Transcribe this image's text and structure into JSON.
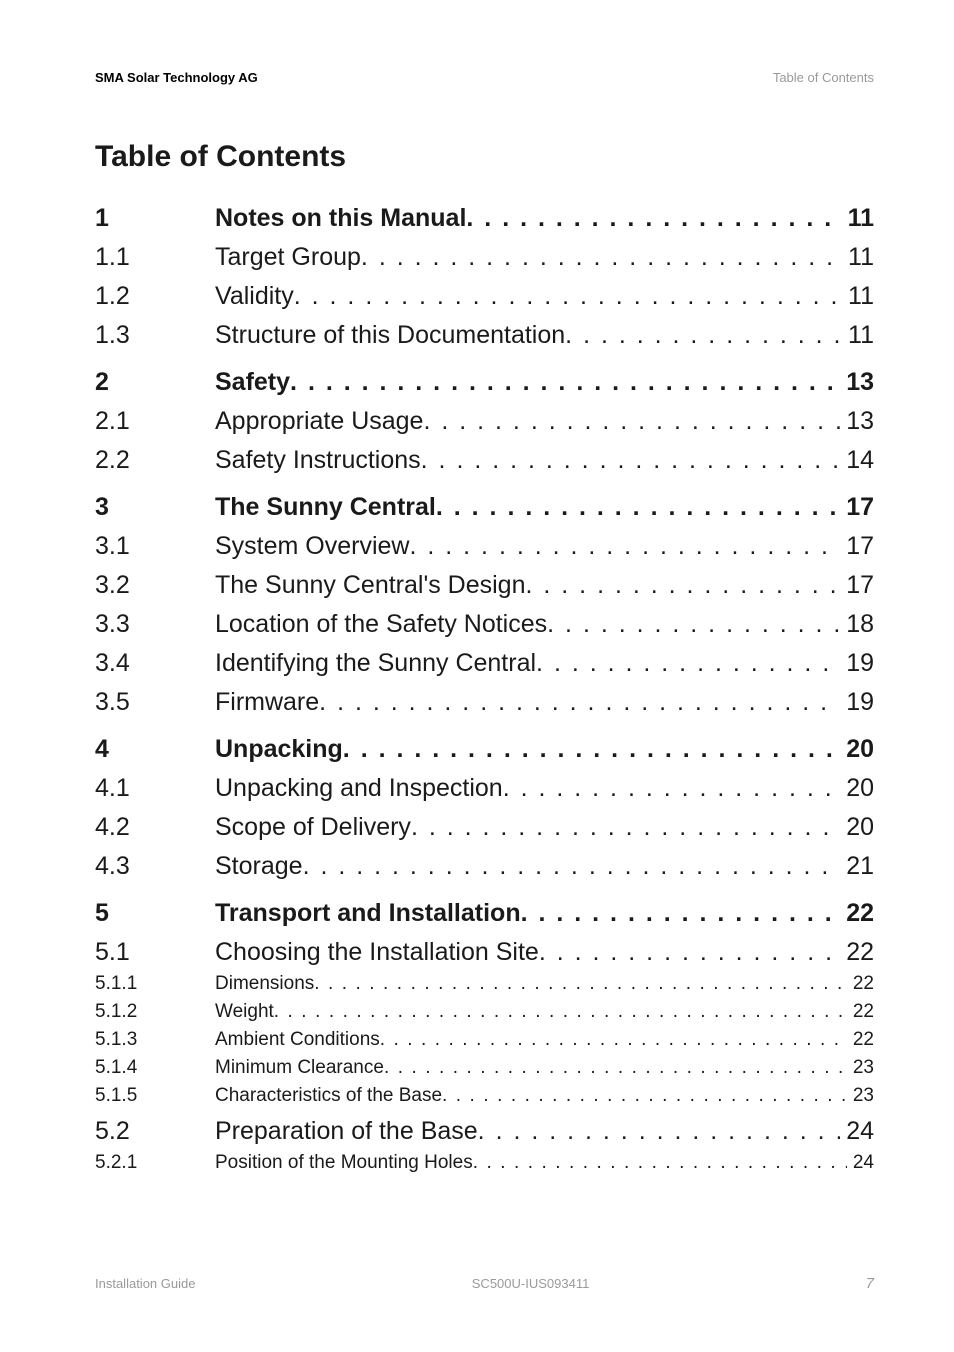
{
  "header": {
    "left": "SMA Solar Technology AG",
    "right": "Table of Contents"
  },
  "title": "Table of Contents",
  "toc": [
    {
      "level": 1,
      "num": "1",
      "label": "Notes on this Manual",
      "page": "11"
    },
    {
      "level": 2,
      "num": "1.1",
      "label": "Target Group",
      "page": "11"
    },
    {
      "level": 2,
      "num": "1.2",
      "label": "Validity",
      "page": "11"
    },
    {
      "level": 2,
      "num": "1.3",
      "label": "Structure of this Documentation",
      "page": "11"
    },
    {
      "level": 1,
      "num": "2",
      "label": "Safety",
      "page": "13"
    },
    {
      "level": 2,
      "num": "2.1",
      "label": "Appropriate Usage",
      "page": "13"
    },
    {
      "level": 2,
      "num": "2.2",
      "label": "Safety Instructions",
      "page": "14"
    },
    {
      "level": 1,
      "num": "3",
      "label": "The Sunny Central",
      "page": "17"
    },
    {
      "level": 2,
      "num": "3.1",
      "label": "System Overview",
      "page": "17"
    },
    {
      "level": 2,
      "num": "3.2",
      "label": "The Sunny Central's Design",
      "page": "17"
    },
    {
      "level": 2,
      "num": "3.3",
      "label": "Location of the Safety Notices",
      "page": "18"
    },
    {
      "level": 2,
      "num": "3.4",
      "label": "Identifying the Sunny Central",
      "page": "19"
    },
    {
      "level": 2,
      "num": "3.5",
      "label": "Firmware",
      "page": "19"
    },
    {
      "level": 1,
      "num": "4",
      "label": "Unpacking",
      "page": "20"
    },
    {
      "level": 2,
      "num": "4.1",
      "label": "Unpacking and Inspection",
      "page": "20"
    },
    {
      "level": 2,
      "num": "4.2",
      "label": "Scope of Delivery",
      "page": "20"
    },
    {
      "level": 2,
      "num": "4.3",
      "label": "Storage",
      "page": "21"
    },
    {
      "level": 1,
      "num": "5",
      "label": "Transport and Installation",
      "page": "22"
    },
    {
      "level": 2,
      "num": "5.1",
      "label": "Choosing the Installation Site",
      "page": "22"
    },
    {
      "level": 3,
      "num": "5.1.1",
      "label": "Dimensions",
      "page": "22"
    },
    {
      "level": 3,
      "num": "5.1.2",
      "label": "Weight",
      "page": "22"
    },
    {
      "level": 3,
      "num": "5.1.3",
      "label": "Ambient Conditions",
      "page": "22"
    },
    {
      "level": 3,
      "num": "5.1.4",
      "label": "Minimum Clearance",
      "page": "23"
    },
    {
      "level": 3,
      "num": "5.1.5",
      "label": "Characteristics of the Base",
      "page": "23"
    },
    {
      "level": 2,
      "num": "5.2",
      "label": "Preparation of the Base",
      "page": "24"
    },
    {
      "level": 3,
      "num": "5.2.1",
      "label": "Position of the Mounting Holes",
      "page": "24"
    }
  ],
  "footer": {
    "left": "Installation Guide",
    "center": "SC500U-IUS093411",
    "page": "7"
  }
}
